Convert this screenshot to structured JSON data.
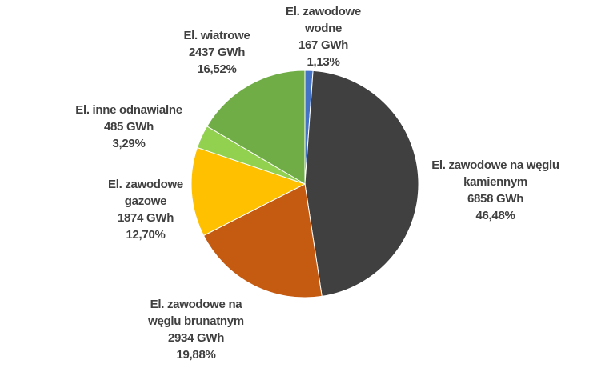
{
  "chart_data": {
    "type": "pie",
    "categories": [
      "El. zawodowe wodne",
      "El. zawodowe na węglu kamiennym",
      "El. zawodowe na węglu brunatnym",
      "El. zawodowe gazowe",
      "El. inne odnawialne",
      "El. wiatrowe"
    ],
    "values": [
      167,
      6858,
      2934,
      1874,
      485,
      2437
    ],
    "value_labels": [
      "167 GWh",
      "6858 GWh",
      "2934 GWh",
      "1874 GWh",
      "485 GWh",
      "2437 GWh"
    ],
    "percentages": [
      1.13,
      46.48,
      19.88,
      12.7,
      3.29,
      16.52
    ],
    "percentage_labels": [
      "1,13%",
      "46,48%",
      "19,88%",
      "12,70%",
      "3,29%",
      "16,52%"
    ],
    "colors": [
      "#4472c4",
      "#404040",
      "#c55a11",
      "#ffc000",
      "#92d050",
      "#70ad47"
    ]
  }
}
